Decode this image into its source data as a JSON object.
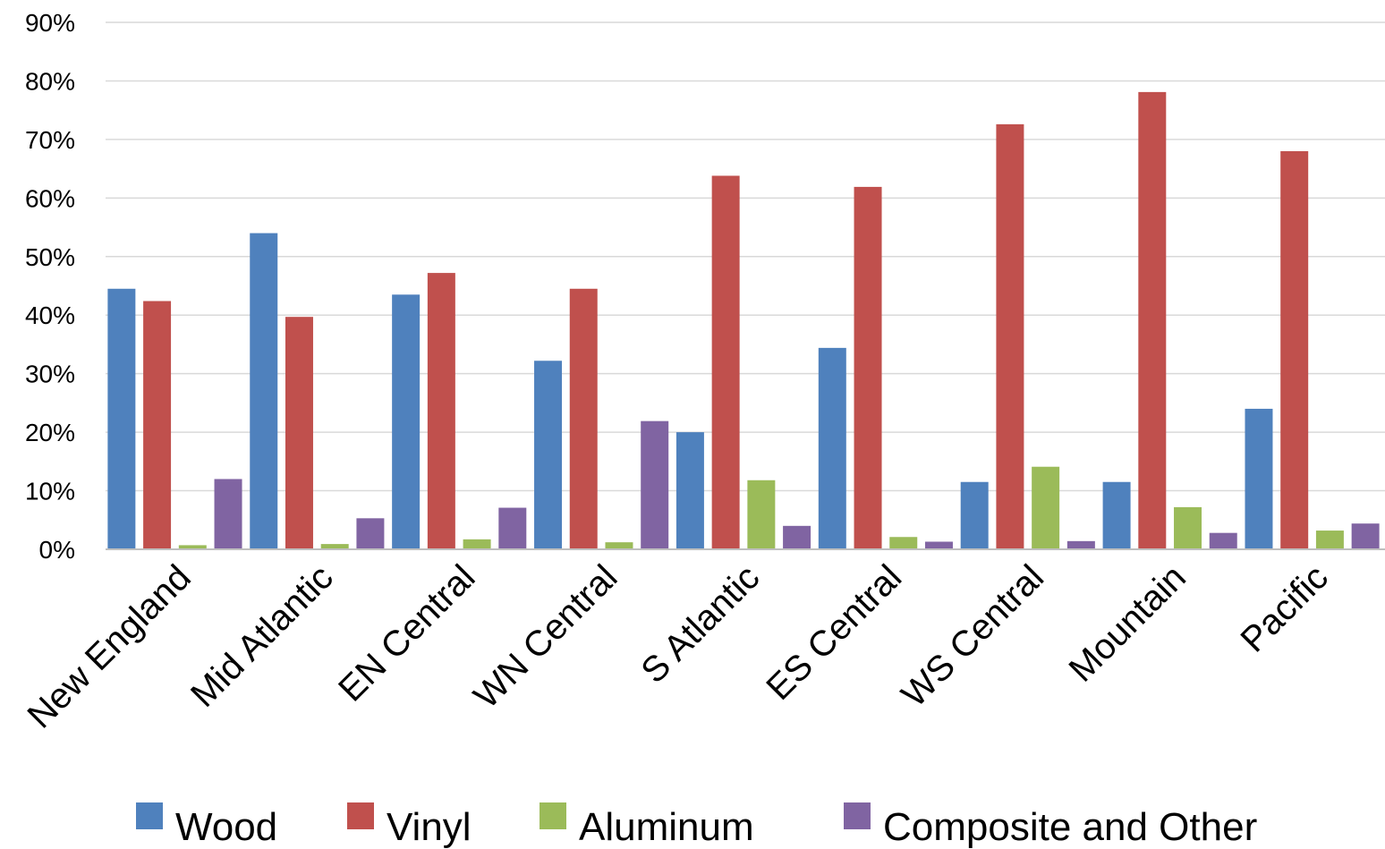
{
  "chart_data": {
    "type": "bar",
    "categories": [
      "New England",
      "Mid Atlantic",
      "EN Central",
      "WN Central",
      "S Atlantic",
      "ES Central",
      "WS Central",
      "Mountain",
      "Pacific"
    ],
    "series": [
      {
        "name": "Wood",
        "color": "#4F81BD",
        "values": [
          44.5,
          54,
          43.5,
          32.2,
          20,
          34.4,
          11.5,
          11.5,
          24
        ]
      },
      {
        "name": "Vinyl",
        "color": "#C0504D",
        "values": [
          42.4,
          39.7,
          47.2,
          44.5,
          63.8,
          61.9,
          72.6,
          78.1,
          68
        ]
      },
      {
        "name": "Aluminum",
        "color": "#9BBB59",
        "values": [
          0.7,
          0.9,
          1.7,
          1.2,
          11.8,
          2.1,
          14.1,
          7.2,
          3.2
        ]
      },
      {
        "name": "Composite and Other",
        "color": "#8064A2",
        "values": [
          12,
          5.3,
          7.1,
          21.9,
          4,
          1.3,
          1.4,
          2.8,
          4.4
        ]
      }
    ],
    "yticks": [
      "0%",
      "10%",
      "20%",
      "30%",
      "40%",
      "50%",
      "60%",
      "70%",
      "80%",
      "90%"
    ],
    "ylim": [
      0,
      90
    ],
    "title": "",
    "xlabel": "",
    "ylabel": "",
    "grid": true,
    "legend_position": "bottom"
  }
}
